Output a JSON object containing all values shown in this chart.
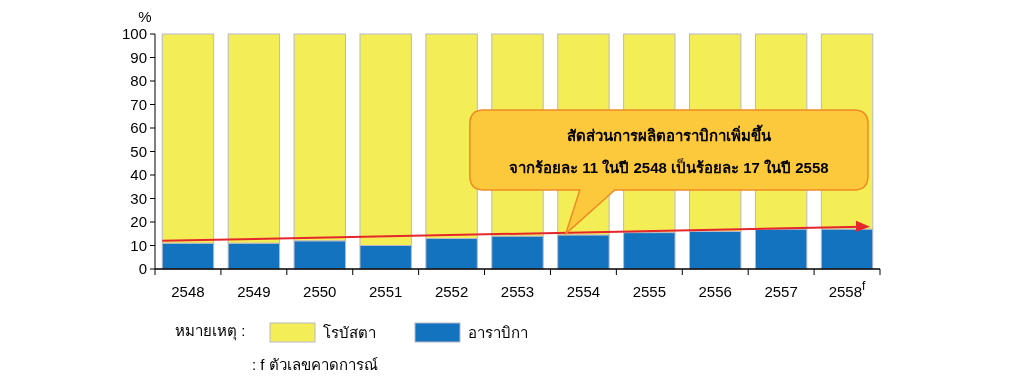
{
  "chart_data": {
    "type": "bar",
    "stacked": true,
    "ylabel": "%",
    "categories": [
      "2548",
      "2549",
      "2550",
      "2551",
      "2552",
      "2553",
      "2554",
      "2555",
      "2556",
      "2557",
      "2558$^{f}$"
    ],
    "series": [
      {
        "name": "อาราบิกา",
        "color": "#1373be",
        "values": [
          11,
          11,
          12,
          10,
          13,
          14,
          14.5,
          15.5,
          16,
          17,
          17
        ]
      },
      {
        "name": "โรบัสตา",
        "color": "#f3ee55",
        "values": [
          89,
          89,
          88,
          90,
          87,
          86,
          85.5,
          84.5,
          84,
          83,
          83
        ]
      }
    ],
    "ylim": [
      0,
      100
    ],
    "yticks": [
      0,
      10,
      20,
      30,
      40,
      50,
      60,
      70,
      80,
      90,
      100
    ],
    "grid": false,
    "legend": "bottom left",
    "legend_title": "หมายเหตุ :",
    "annotations": [
      "สัดส่วนการผลิตอาราบิกาเพิ่มขึ้น\nจากร้อยละ 11 ในปี 2548 เป็นร้อยละ 17 ในปี 2558",
      ": f ตัวเลขคาดการณ์"
    ]
  }
}
